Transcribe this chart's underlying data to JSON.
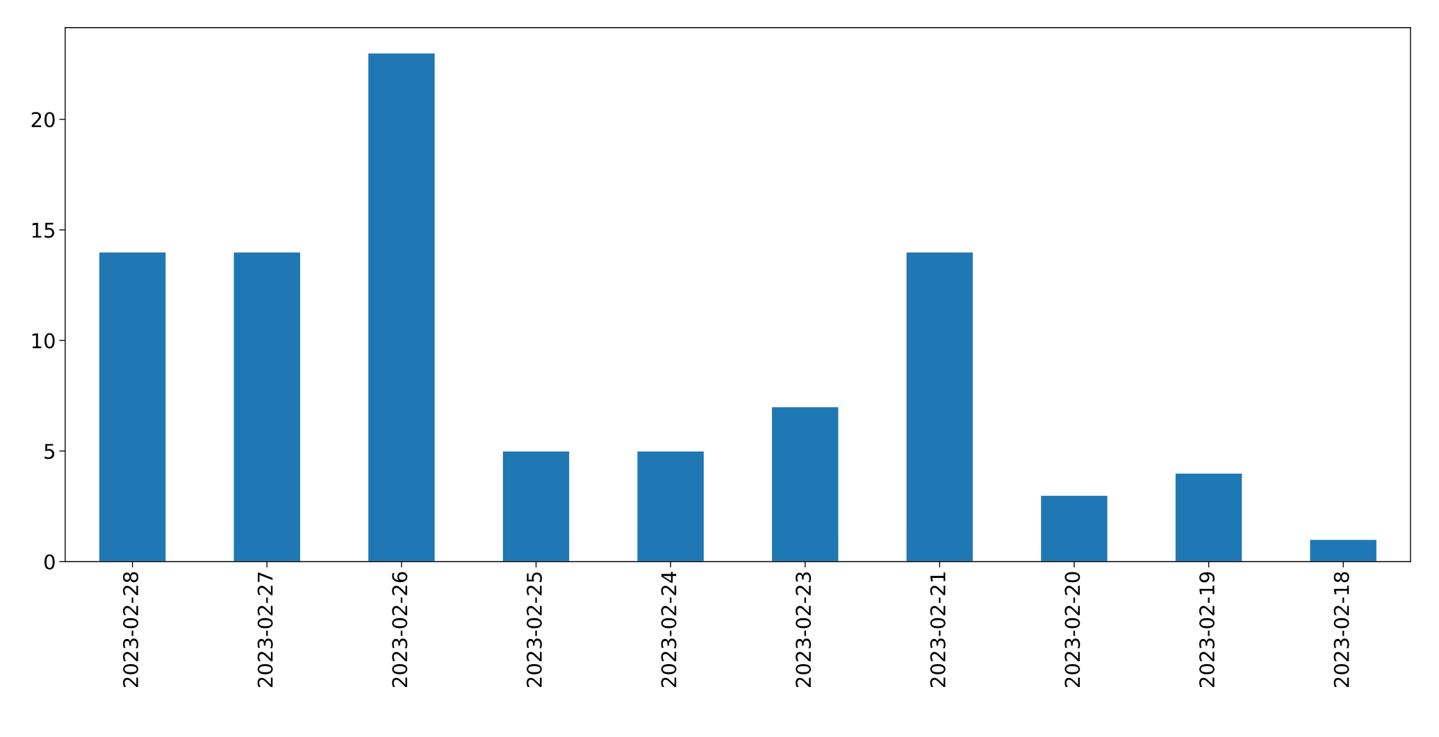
{
  "chart_data": {
    "type": "bar",
    "categories": [
      "2023-02-28",
      "2023-02-27",
      "2023-02-26",
      "2023-02-25",
      "2023-02-24",
      "2023-02-23",
      "2023-02-21",
      "2023-02-20",
      "2023-02-19",
      "2023-02-18"
    ],
    "values": [
      14,
      14,
      23,
      5,
      5,
      7,
      14,
      3,
      4,
      1
    ],
    "color": "#1f77b4",
    "ylim": [
      0,
      24.15
    ],
    "yticks": [
      0,
      5,
      10,
      15,
      20
    ],
    "grid": false,
    "legend": false
  }
}
